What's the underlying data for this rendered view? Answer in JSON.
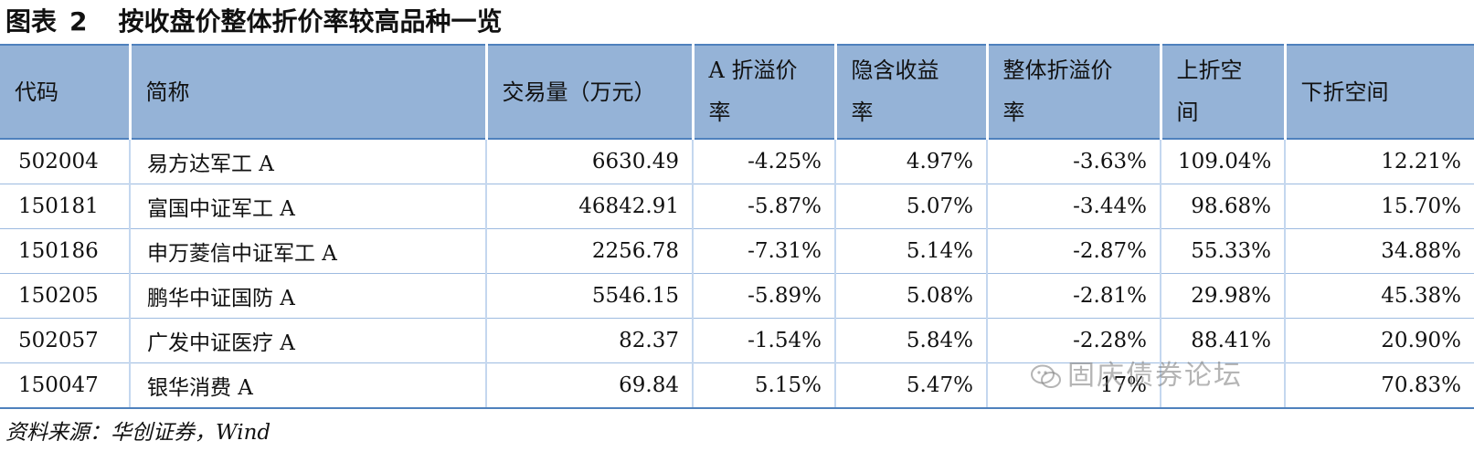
{
  "title": {
    "label": "图表",
    "number": "2",
    "text": "按收盘价整体折价率较高品种一览"
  },
  "table": {
    "headers": [
      {
        "line1": "代码",
        "line2": ""
      },
      {
        "line1": "简称",
        "line2": ""
      },
      {
        "line1": "交易量（万元）",
        "line2": ""
      },
      {
        "line1": "A 折溢价",
        "line2": "率"
      },
      {
        "line1": "隐含收益",
        "line2": "率"
      },
      {
        "line1": "整体折溢价",
        "line2": "率"
      },
      {
        "line1": "上折空",
        "line2": "间"
      },
      {
        "line1": "下折空间",
        "line2": ""
      }
    ],
    "rows": [
      [
        "502004",
        "易方达军工 A",
        "6630.49",
        "-4.25%",
        "4.97%",
        "-3.63%",
        "109.04%",
        "12.21%"
      ],
      [
        "150181",
        "富国中证军工 A",
        "46842.91",
        "-5.87%",
        "5.07%",
        "-3.44%",
        "98.68%",
        "15.70%"
      ],
      [
        "150186",
        "申万菱信中证军工 A",
        "2256.78",
        "-7.31%",
        "5.14%",
        "-2.87%",
        "55.33%",
        "34.88%"
      ],
      [
        "150205",
        "鹏华中证国防 A",
        "5546.15",
        "-5.89%",
        "5.08%",
        "-2.81%",
        "29.98%",
        "45.38%"
      ],
      [
        "502057",
        "广发中证医疗 A",
        "82.37",
        "-1.54%",
        "5.84%",
        "-2.28%",
        "88.41%",
        "20.90%"
      ],
      [
        "150047",
        "银华消费 A",
        "69.84",
        "5.15%",
        "5.47%",
        "17%",
        "",
        "70.83%"
      ]
    ]
  },
  "source": "资料来源：华创证券，Wind",
  "watermark": "固庆债券论坛"
}
